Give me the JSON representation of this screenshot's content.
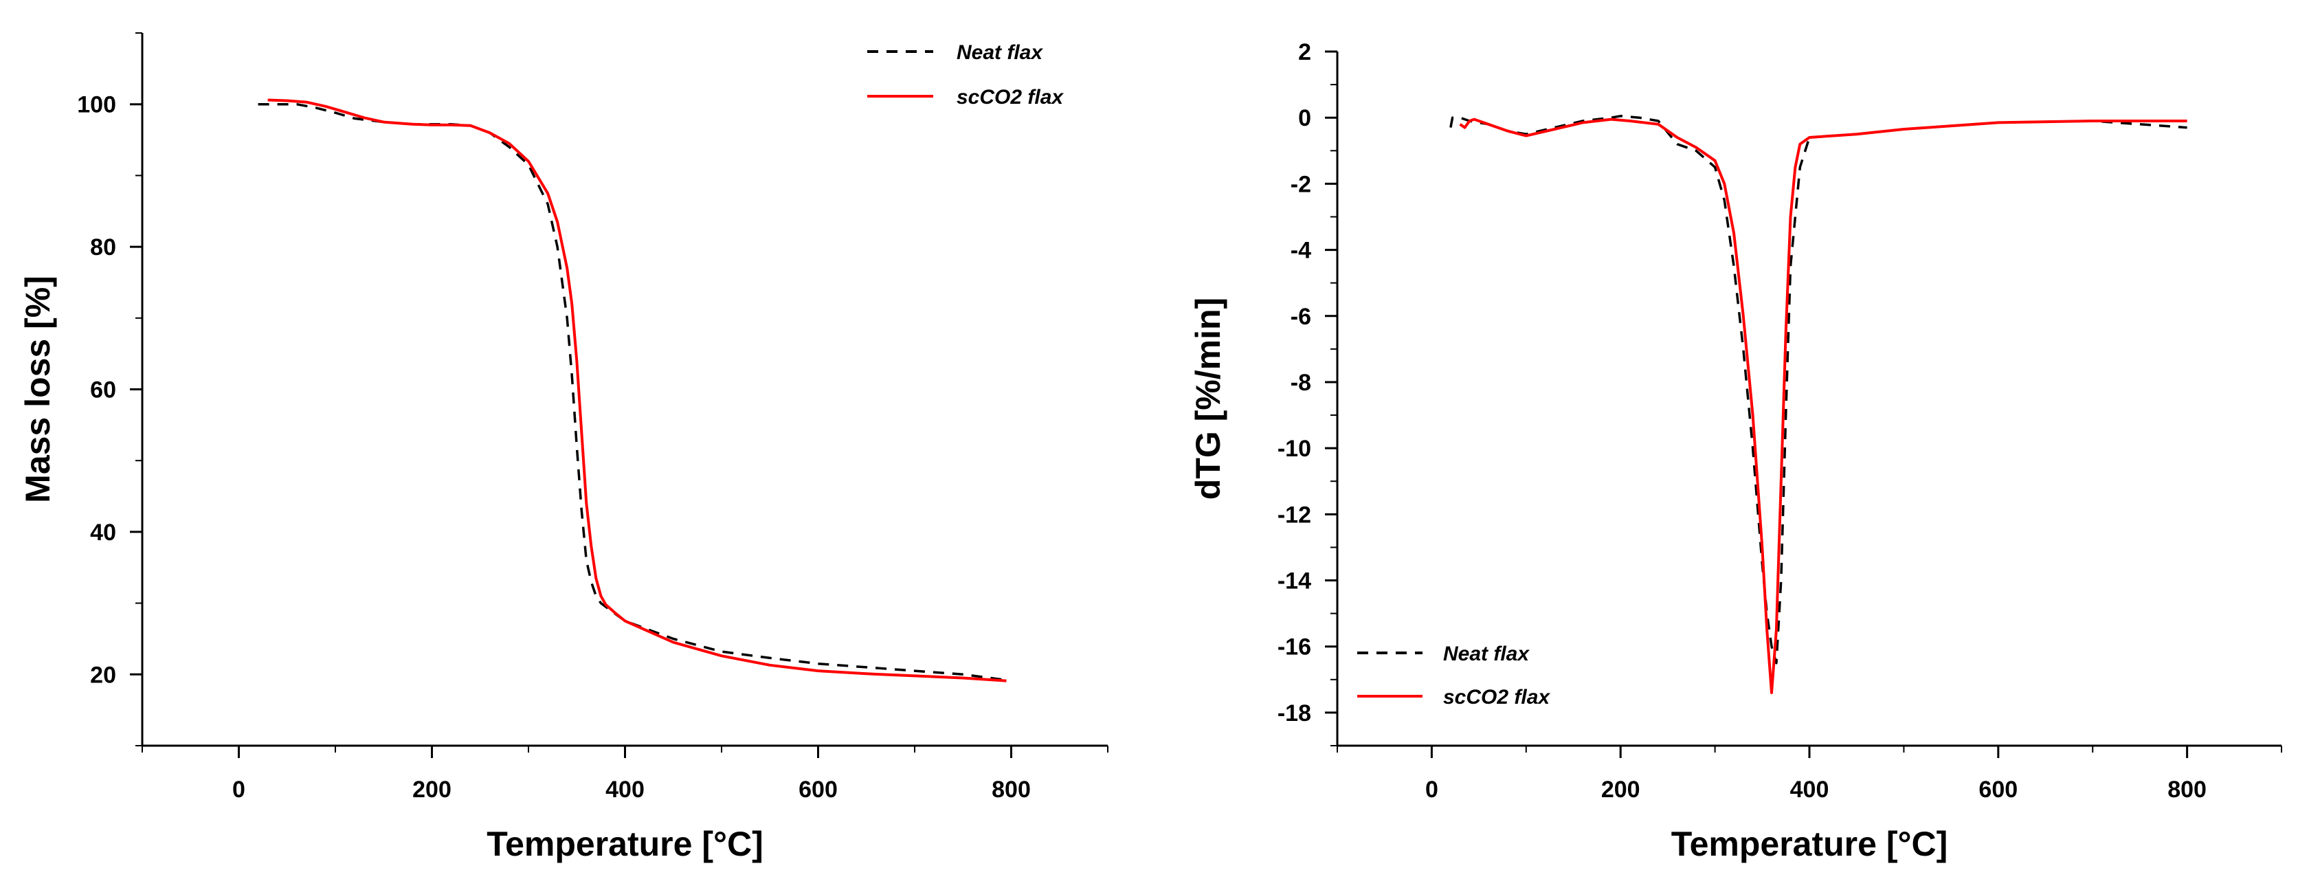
{
  "chart_data": [
    {
      "type": "line",
      "title": "",
      "xlabel": "Temperature [°C]",
      "ylabel": "Mass loss [%]",
      "xlim": [
        -100,
        900
      ],
      "ylim": [
        10,
        110
      ],
      "xticks": [
        0,
        200,
        400,
        600,
        800
      ],
      "yticks": [
        20,
        40,
        60,
        80,
        100
      ],
      "legend_position": "top-right",
      "series": [
        {
          "name": "Neat flax",
          "style": "dashed",
          "color": "#000000",
          "x": [
            20,
            40,
            60,
            80,
            100,
            120,
            150,
            180,
            200,
            220,
            240,
            260,
            280,
            300,
            320,
            330,
            340,
            345,
            350,
            355,
            360,
            365,
            370,
            375,
            380,
            390,
            400,
            450,
            500,
            550,
            600,
            650,
            700,
            750,
            790
          ],
          "y": [
            100,
            100,
            100,
            99.5,
            98.8,
            98,
            97.5,
            97.2,
            97.2,
            97.2,
            97,
            96,
            94,
            91.5,
            86,
            80,
            70,
            62,
            52,
            43,
            36,
            33,
            31,
            30,
            29.5,
            28.5,
            27.5,
            25,
            23.2,
            22.3,
            21.5,
            21,
            20.5,
            20,
            19.3
          ]
        },
        {
          "name": "scCO2 flax",
          "style": "solid",
          "color": "#ff0000",
          "x": [
            30,
            50,
            70,
            90,
            110,
            130,
            150,
            180,
            200,
            220,
            240,
            260,
            280,
            300,
            320,
            330,
            340,
            345,
            350,
            355,
            360,
            365,
            370,
            375,
            380,
            390,
            400,
            450,
            500,
            550,
            600,
            650,
            700,
            750,
            795
          ],
          "y": [
            100.6,
            100.5,
            100.3,
            99.7,
            98.9,
            98.1,
            97.5,
            97.2,
            97.1,
            97.1,
            97,
            96,
            94.5,
            92,
            87.5,
            83.5,
            77,
            72,
            64,
            54,
            44,
            38,
            33.5,
            31,
            29.8,
            28.6,
            27.5,
            24.5,
            22.6,
            21.3,
            20.5,
            20.1,
            19.8,
            19.5,
            19.1
          ]
        }
      ]
    },
    {
      "type": "line",
      "title": "",
      "xlabel": "Temperature [°C]",
      "ylabel": "dTG [%/min]",
      "xlim": [
        -100,
        900
      ],
      "ylim": [
        -19,
        2
      ],
      "xticks": [
        0,
        200,
        400,
        600,
        800
      ],
      "yticks": [
        2,
        0,
        -2,
        -4,
        -6,
        -8,
        -10,
        -12,
        -14,
        -16,
        -18
      ],
      "legend_position": "bottom-left",
      "series": [
        {
          "name": "Neat flax",
          "style": "dashed",
          "color": "#000000",
          "x": [
            20,
            22,
            30,
            40,
            60,
            80,
            100,
            130,
            160,
            190,
            200,
            220,
            240,
            260,
            280,
            300,
            310,
            320,
            330,
            340,
            350,
            355,
            360,
            365,
            370,
            375,
            380,
            390,
            400,
            450,
            500,
            600,
            700,
            800
          ],
          "y": [
            -0.3,
            0,
            0,
            -0.1,
            -0.2,
            -0.4,
            -0.5,
            -0.3,
            -0.1,
            0,
            0.05,
            0,
            -0.1,
            -0.8,
            -1,
            -1.5,
            -2.5,
            -4.5,
            -7,
            -10,
            -13.5,
            -15,
            -16,
            -16.5,
            -14,
            -9,
            -4.5,
            -1.5,
            -0.6,
            -0.5,
            -0.35,
            -0.15,
            -0.1,
            -0.3
          ]
        },
        {
          "name": "scCO2 flax",
          "style": "solid",
          "color": "#ff0000",
          "x": [
            30,
            35,
            40,
            45,
            50,
            60,
            80,
            100,
            130,
            160,
            190,
            210,
            240,
            260,
            280,
            300,
            310,
            320,
            330,
            340,
            350,
            355,
            360,
            365,
            370,
            375,
            380,
            385,
            390,
            400,
            450,
            500,
            600,
            700,
            800
          ],
          "y": [
            -0.2,
            -0.3,
            -0.1,
            -0.05,
            -0.1,
            -0.2,
            -0.4,
            -0.55,
            -0.35,
            -0.15,
            -0.05,
            -0.1,
            -0.2,
            -0.6,
            -0.9,
            -1.3,
            -2,
            -3.5,
            -6,
            -9,
            -13,
            -15.5,
            -17.4,
            -15.5,
            -11,
            -6.5,
            -3,
            -1.5,
            -0.8,
            -0.6,
            -0.5,
            -0.35,
            -0.15,
            -0.1,
            -0.1
          ]
        }
      ]
    }
  ]
}
